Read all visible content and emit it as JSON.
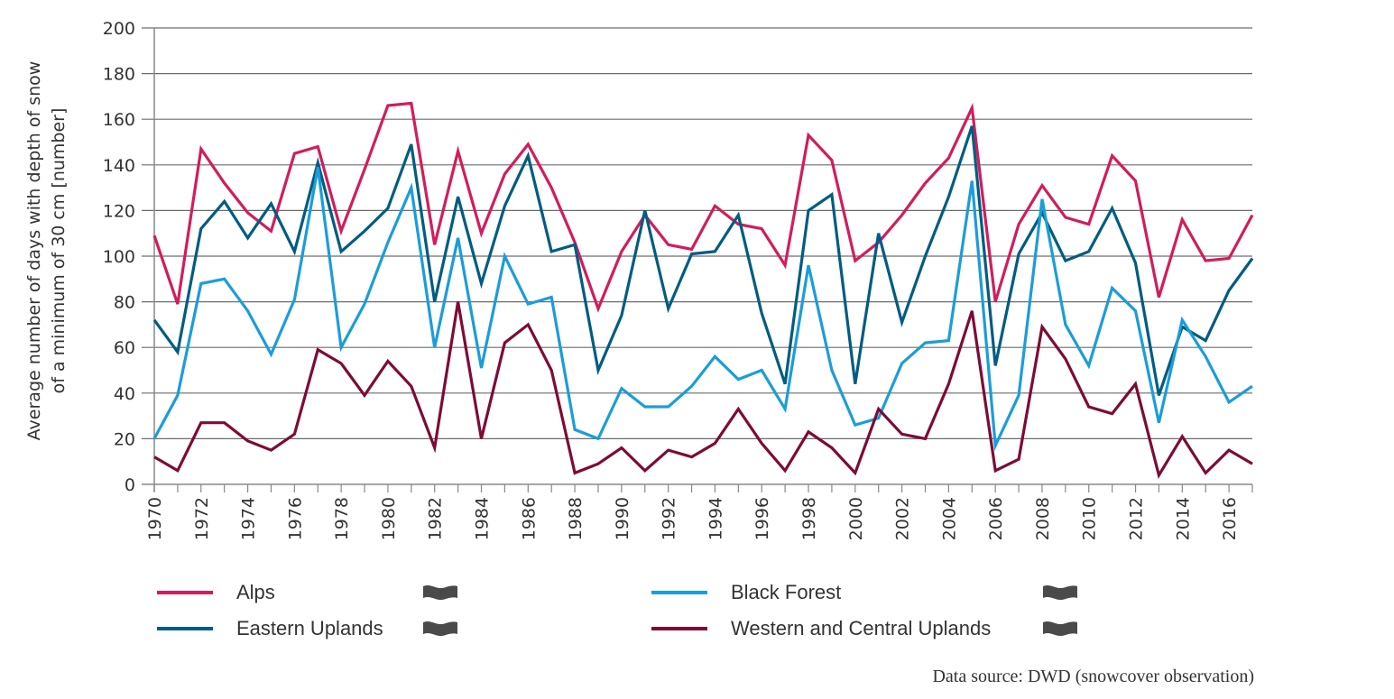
{
  "chart_data": {
    "type": "line",
    "title": "",
    "xlabel": "",
    "ylabel": "Average number of days with depth of snow of a minimum of 30 cm [number]",
    "ylabel_lines": [
      "Average number of days with depth of snow",
      "of a minimum of 30 cm [number]"
    ],
    "ylim": [
      0,
      200
    ],
    "yticks": [
      0,
      20,
      40,
      60,
      80,
      100,
      120,
      140,
      160,
      180,
      200
    ],
    "grid": true,
    "legend_position": "bottom",
    "x": [
      1970,
      1971,
      1972,
      1973,
      1974,
      1975,
      1976,
      1977,
      1978,
      1979,
      1980,
      1981,
      1982,
      1983,
      1984,
      1985,
      1986,
      1987,
      1988,
      1989,
      1990,
      1991,
      1992,
      1993,
      1994,
      1995,
      1996,
      1997,
      1998,
      1999,
      2000,
      2001,
      2002,
      2003,
      2004,
      2005,
      2006,
      2007,
      2008,
      2009,
      2010,
      2011,
      2012,
      2013,
      2014,
      2015,
      2016,
      2017
    ],
    "xtick_labels": [
      "1970",
      "1972",
      "1974",
      "1976",
      "1978",
      "1980",
      "1982",
      "1984",
      "1986",
      "1988",
      "1990",
      "1992",
      "1994",
      "1996",
      "1998",
      "2000",
      "2002",
      "2004",
      "2006",
      "2008",
      "2010",
      "2012",
      "2014",
      "2016"
    ],
    "series": [
      {
        "name": "Alps",
        "color": "#d11d5c",
        "trend_icon": "wave-flag-icon",
        "values": [
          109,
          79,
          147,
          132,
          119,
          111,
          145,
          148,
          111,
          138,
          166,
          167,
          105,
          146,
          110,
          136,
          149,
          130,
          106,
          77,
          102,
          118,
          105,
          103,
          122,
          114,
          112,
          96,
          153,
          142,
          98,
          106,
          118,
          132,
          143,
          165,
          80,
          114,
          131,
          117,
          114,
          144,
          133,
          82,
          116,
          98,
          99,
          118
        ]
      },
      {
        "name": "Eastern Uplands",
        "color": "#005c82",
        "trend_icon": "wave-flag-icon",
        "values": [
          72,
          58,
          112,
          124,
          108,
          123,
          102,
          141,
          102,
          111,
          121,
          149,
          80,
          126,
          88,
          122,
          144,
          102,
          105,
          50,
          74,
          120,
          77,
          101,
          102,
          118,
          75,
          44,
          120,
          127,
          44,
          110,
          71,
          100,
          126,
          157,
          52,
          101,
          119,
          98,
          102,
          121,
          97,
          39,
          69,
          63,
          85,
          99
        ]
      },
      {
        "name": "Black Forest",
        "color": "#1b9dd9",
        "trend_icon": "wave-flag-icon",
        "values": [
          20,
          39,
          88,
          90,
          76,
          57,
          81,
          139,
          60,
          79,
          106,
          130,
          60,
          108,
          51,
          100,
          79,
          82,
          24,
          20,
          42,
          34,
          34,
          43,
          56,
          46,
          50,
          33,
          96,
          50,
          26,
          29,
          53,
          62,
          63,
          133,
          17,
          39,
          125,
          70,
          52,
          86,
          76,
          27,
          72,
          56,
          36,
          43
        ]
      },
      {
        "name": "Western and Central  Uplands",
        "color": "#7d0b37",
        "trend_icon": "wave-flag-icon",
        "values": [
          12,
          6,
          27,
          27,
          19,
          15,
          22,
          59,
          53,
          39,
          54,
          43,
          16,
          80,
          20,
          62,
          70,
          50,
          5,
          9,
          16,
          6,
          15,
          12,
          18,
          33,
          18,
          6,
          23,
          16,
          5,
          33,
          22,
          20,
          44,
          76,
          6,
          11,
          69,
          55,
          34,
          31,
          44,
          4,
          21,
          5,
          15,
          9
        ]
      }
    ],
    "annotation": "Data source: DWD (snowcover observation)"
  },
  "legend": {
    "items": [
      {
        "label": "Alps",
        "color": "#d11d5c"
      },
      {
        "label": "Eastern Uplands",
        "color": "#005c82"
      },
      {
        "label": "Black Forest",
        "color": "#1b9dd9"
      },
      {
        "label": "Western and Central  Uplands",
        "color": "#7d0b37"
      }
    ],
    "trend_icon_color": "#4a4a4a"
  },
  "source": "Data source: DWD (snowcover observation)"
}
